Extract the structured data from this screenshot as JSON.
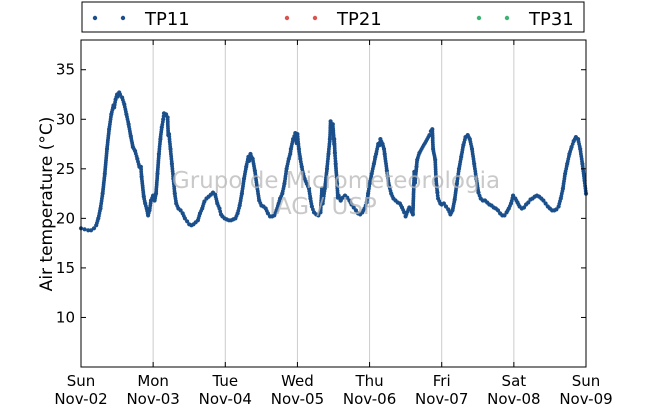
{
  "chart_data": {
    "type": "scatter",
    "ylabel": "Air temperature (°C)",
    "ylim": [
      5,
      38
    ],
    "yticks": [
      10,
      15,
      20,
      25,
      30,
      35
    ],
    "xlim": [
      0,
      7
    ],
    "xticks": [
      {
        "day": "Sun",
        "date": "Nov-02"
      },
      {
        "day": "Mon",
        "date": "Nov-03"
      },
      {
        "day": "Tue",
        "date": "Nov-04"
      },
      {
        "day": "Wed",
        "date": "Nov-05"
      },
      {
        "day": "Thu",
        "date": "Nov-06"
      },
      {
        "day": "Fri",
        "date": "Nov-07"
      },
      {
        "day": "Sat",
        "date": "Nov-08"
      },
      {
        "day": "Sun",
        "date": "Nov-09"
      }
    ],
    "grid": "vertical",
    "legend_position": "top",
    "watermark": [
      "Grupo de Micrometeorologia",
      "IAG / USP"
    ],
    "series": [
      {
        "name": "TP11",
        "color": "#1a4f8b",
        "points": [
          [
            0.0,
            19.0
          ],
          [
            0.05,
            18.9
          ],
          [
            0.1,
            18.8
          ],
          [
            0.14,
            18.8
          ],
          [
            0.18,
            19.0
          ],
          [
            0.21,
            19.3
          ],
          [
            0.24,
            20.0
          ],
          [
            0.27,
            21.0
          ],
          [
            0.3,
            22.5
          ],
          [
            0.33,
            24.5
          ],
          [
            0.36,
            27.0
          ],
          [
            0.39,
            29.0
          ],
          [
            0.42,
            30.5
          ],
          [
            0.45,
            31.4
          ],
          [
            0.48,
            32.0
          ],
          [
            0.51,
            32.3
          ],
          [
            0.54,
            32.5
          ],
          [
            0.57,
            32.2
          ],
          [
            0.6,
            31.5
          ],
          [
            0.63,
            30.5
          ],
          [
            0.66,
            29.5
          ],
          [
            0.69,
            28.3
          ],
          [
            0.72,
            27.2
          ],
          [
            0.75,
            26.8
          ],
          [
            0.78,
            26.0
          ],
          [
            0.81,
            25.2
          ],
          [
            0.84,
            24.2
          ],
          [
            0.87,
            22.2
          ],
          [
            0.89,
            21.5
          ],
          [
            0.91,
            21.0
          ],
          [
            0.93,
            20.3
          ],
          [
            0.95,
            20.8
          ],
          [
            0.97,
            21.8
          ],
          [
            1.0,
            22.3
          ],
          [
            1.02,
            21.8
          ],
          [
            1.04,
            22.5
          ],
          [
            1.06,
            24.5
          ],
          [
            1.08,
            26.5
          ],
          [
            1.1,
            28.0
          ],
          [
            1.12,
            29.2
          ],
          [
            1.14,
            30.0
          ],
          [
            1.16,
            30.4
          ],
          [
            1.18,
            30.5
          ],
          [
            1.2,
            30.2
          ],
          [
            1.22,
            28.5
          ],
          [
            1.24,
            27.0
          ],
          [
            1.26,
            25.5
          ],
          [
            1.28,
            24.0
          ],
          [
            1.3,
            22.5
          ],
          [
            1.32,
            21.5
          ],
          [
            1.35,
            21.0
          ],
          [
            1.38,
            20.8
          ],
          [
            1.41,
            20.5
          ],
          [
            1.44,
            20.0
          ],
          [
            1.47,
            19.7
          ],
          [
            1.5,
            19.4
          ],
          [
            1.53,
            19.3
          ],
          [
            1.56,
            19.4
          ],
          [
            1.59,
            19.6
          ],
          [
            1.62,
            19.8
          ],
          [
            1.65,
            20.5
          ],
          [
            1.68,
            21.0
          ],
          [
            1.71,
            21.7
          ],
          [
            1.74,
            22.0
          ],
          [
            1.77,
            22.2
          ],
          [
            1.8,
            22.4
          ],
          [
            1.83,
            22.6
          ],
          [
            1.86,
            22.4
          ],
          [
            1.89,
            21.5
          ],
          [
            1.92,
            21.0
          ],
          [
            1.94,
            20.4
          ],
          [
            1.96,
            20.2
          ],
          [
            1.99,
            20.0
          ],
          [
            2.02,
            19.9
          ],
          [
            2.05,
            19.8
          ],
          [
            2.08,
            19.8
          ],
          [
            2.11,
            19.9
          ],
          [
            2.14,
            20.0
          ],
          [
            2.17,
            20.5
          ],
          [
            2.2,
            21.3
          ],
          [
            2.23,
            22.5
          ],
          [
            2.26,
            24.0
          ],
          [
            2.29,
            25.2
          ],
          [
            2.32,
            26.2
          ],
          [
            2.35,
            26.5
          ],
          [
            2.38,
            26.0
          ],
          [
            2.41,
            24.8
          ],
          [
            2.44,
            23.2
          ],
          [
            2.47,
            21.8
          ],
          [
            2.5,
            21.3
          ],
          [
            2.53,
            21.2
          ],
          [
            2.56,
            21.0
          ],
          [
            2.59,
            20.5
          ],
          [
            2.62,
            20.2
          ],
          [
            2.65,
            20.2
          ],
          [
            2.68,
            20.3
          ],
          [
            2.71,
            20.8
          ],
          [
            2.74,
            21.5
          ],
          [
            2.76,
            22.0
          ],
          [
            2.79,
            22.5
          ],
          [
            2.82,
            23.5
          ],
          [
            2.85,
            25.0
          ],
          [
            2.88,
            26.0
          ],
          [
            2.91,
            27.0
          ],
          [
            2.94,
            28.0
          ],
          [
            2.97,
            28.6
          ],
          [
            3.0,
            28.5
          ],
          [
            3.02,
            27.0
          ],
          [
            3.04,
            26.0
          ],
          [
            3.06,
            25.2
          ],
          [
            3.08,
            24.5
          ],
          [
            3.1,
            24.0
          ],
          [
            3.13,
            23.5
          ],
          [
            3.16,
            23.0
          ],
          [
            3.18,
            22.0
          ],
          [
            3.2,
            21.2
          ],
          [
            3.23,
            20.6
          ],
          [
            3.26,
            20.4
          ],
          [
            3.29,
            20.3
          ],
          [
            3.32,
            20.6
          ],
          [
            3.35,
            21.5
          ],
          [
            3.38,
            23.0
          ],
          [
            3.41,
            25.0
          ],
          [
            3.43,
            26.5
          ],
          [
            3.45,
            28.0
          ],
          [
            3.47,
            29.3
          ],
          [
            3.49,
            29.5
          ],
          [
            3.51,
            27.5
          ],
          [
            3.53,
            25.5
          ],
          [
            3.55,
            23.5
          ],
          [
            3.57,
            22.3
          ],
          [
            3.6,
            21.8
          ],
          [
            3.63,
            22.1
          ],
          [
            3.66,
            22.3
          ],
          [
            3.69,
            22.1
          ],
          [
            3.72,
            21.8
          ],
          [
            3.75,
            21.4
          ],
          [
            3.78,
            21.1
          ],
          [
            3.81,
            20.8
          ],
          [
            3.84,
            20.5
          ],
          [
            3.87,
            20.4
          ],
          [
            3.9,
            20.6
          ],
          [
            3.93,
            21.0
          ],
          [
            3.96,
            21.6
          ],
          [
            3.98,
            22.5
          ],
          [
            4.0,
            23.5
          ],
          [
            4.03,
            24.5
          ],
          [
            4.06,
            25.5
          ],
          [
            4.09,
            26.5
          ],
          [
            4.12,
            27.5
          ],
          [
            4.15,
            28.0
          ],
          [
            4.18,
            27.5
          ],
          [
            4.21,
            26.5
          ],
          [
            4.24,
            24.8
          ],
          [
            4.27,
            23.3
          ],
          [
            4.3,
            22.5
          ],
          [
            4.33,
            22.0
          ],
          [
            4.36,
            21.8
          ],
          [
            4.39,
            21.6
          ],
          [
            4.42,
            21.5
          ],
          [
            4.45,
            21.1
          ],
          [
            4.48,
            20.6
          ],
          [
            4.5,
            20.2
          ],
          [
            4.55,
            21.1
          ],
          [
            4.6,
            20.4
          ],
          [
            4.63,
            23.6
          ],
          [
            4.65,
            25.2
          ],
          [
            4.66,
            25.9
          ],
          [
            4.69,
            26.6
          ],
          [
            4.85,
            28.8
          ],
          [
            4.87,
            29.0
          ],
          [
            3.34,
            23.0
          ],
          [
            3.6,
            21.8
          ],
          [
            2.99,
            27.6
          ],
          [
            2.9,
            26.5
          ],
          [
            4.83,
            28.4
          ],
          [
            2.35,
            26.4
          ],
          [
            2.33,
            25.8
          ],
          [
            1.21,
            28.4
          ],
          [
            0.53,
            32.7
          ],
          [
            0.5,
            32.5
          ],
          [
            4.62,
            24.7
          ],
          [
            4.91,
            25.9
          ],
          [
            0.83,
            25.2
          ],
          [
            1.15,
            30.6
          ],
          [
            0.46,
            31.2
          ],
          [
            3.46,
            29.8
          ],
          [
            3.51,
            28.0
          ],
          [
            3.52,
            26.6
          ],
          [
            3.56,
            22.1
          ],
          [
            4.08,
            26.2
          ],
          [
            4.14,
            27.4
          ],
          [
            4.2,
            27.0
          ],
          [
            4.88,
            27.0
          ],
          [
            4.92,
            24.0
          ],
          [
            4.94,
            22.6
          ],
          [
            4.95,
            22.0
          ],
          [
            4.98,
            21.5
          ],
          [
            5.0,
            21.4
          ],
          [
            5.03,
            21.5
          ],
          [
            5.06,
            21.2
          ],
          [
            5.09,
            20.9
          ],
          [
            5.12,
            20.4
          ],
          [
            5.15,
            20.8
          ],
          [
            5.18,
            21.9
          ],
          [
            5.21,
            23.5
          ],
          [
            5.24,
            25.0
          ],
          [
            5.27,
            26.2
          ],
          [
            5.3,
            27.4
          ],
          [
            5.33,
            28.2
          ],
          [
            5.36,
            28.4
          ],
          [
            5.39,
            28.0
          ],
          [
            5.42,
            27.0
          ],
          [
            5.45,
            25.5
          ],
          [
            5.48,
            24.0
          ],
          [
            5.51,
            22.6
          ],
          [
            5.54,
            22.0
          ],
          [
            5.57,
            21.8
          ],
          [
            5.6,
            21.8
          ],
          [
            5.63,
            21.6
          ],
          [
            5.66,
            21.4
          ],
          [
            5.69,
            21.3
          ],
          [
            5.72,
            21.1
          ],
          [
            5.75,
            21.0
          ],
          [
            5.78,
            20.8
          ],
          [
            5.81,
            20.5
          ],
          [
            5.84,
            20.3
          ],
          [
            5.87,
            20.3
          ],
          [
            5.9,
            20.6
          ],
          [
            5.93,
            21.0
          ],
          [
            5.96,
            21.5
          ],
          [
            5.99,
            22.3
          ],
          [
            6.02,
            22.0
          ],
          [
            6.05,
            21.6
          ],
          [
            6.08,
            21.2
          ],
          [
            6.11,
            21.0
          ],
          [
            6.14,
            21.1
          ],
          [
            6.17,
            21.4
          ],
          [
            6.2,
            21.6
          ],
          [
            6.23,
            21.9
          ],
          [
            6.26,
            22.0
          ],
          [
            6.29,
            22.2
          ],
          [
            6.32,
            22.3
          ],
          [
            6.35,
            22.2
          ],
          [
            6.38,
            22.0
          ],
          [
            6.41,
            21.8
          ],
          [
            6.44,
            21.5
          ],
          [
            6.47,
            21.2
          ],
          [
            6.5,
            21.0
          ],
          [
            6.53,
            20.8
          ],
          [
            6.56,
            20.8
          ],
          [
            6.59,
            20.9
          ],
          [
            6.62,
            21.2
          ],
          [
            6.65,
            22.0
          ],
          [
            6.68,
            23.0
          ],
          [
            6.71,
            24.5
          ],
          [
            6.74,
            25.5
          ],
          [
            6.77,
            26.5
          ],
          [
            6.8,
            27.2
          ],
          [
            6.83,
            27.8
          ],
          [
            6.86,
            28.2
          ],
          [
            6.89,
            28.0
          ],
          [
            6.92,
            27.0
          ],
          [
            6.95,
            25.5
          ],
          [
            6.98,
            23.8
          ],
          [
            7.0,
            22.5
          ]
        ]
      },
      {
        "name": "TP21",
        "color": "#d9534f",
        "points": []
      },
      {
        "name": "TP31",
        "color": "#3cb371",
        "points": []
      }
    ]
  }
}
